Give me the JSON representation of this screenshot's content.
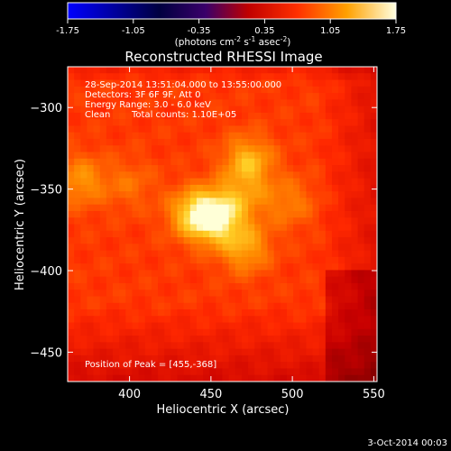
{
  "colorbar": {
    "tick_labels": [
      "-1.75",
      "-1.05",
      "-0.35",
      "0.35",
      "1.05",
      "1.75"
    ],
    "range": [
      -1.75,
      1.75
    ],
    "units_prefix": "(photons cm",
    "units_exp1": "-2",
    "units_mid": " s",
    "units_exp2": "-1",
    "units_mid2": " asec",
    "units_exp3": "-2",
    "units_suffix": ")",
    "colormap": "hot"
  },
  "image_title": "Reconstructed RHESSI Image",
  "annotations": {
    "time_range": "28-Sep-2014 13:51:04.000 to 13:55:00.000",
    "detectors": "Detectors: 3F 6F 9F, Att 0",
    "energy_range": "Energy Range: 3.0 - 6.0 keV",
    "algorithm": "Clean",
    "total_counts": "Total counts: 1.10E+05",
    "peak_position": "Position of Peak = [455,-368]"
  },
  "footer_timestamp": "3-Oct-2014 00:03",
  "chart_data": {
    "type": "heatmap",
    "title": "Reconstructed RHESSI Image",
    "xlabel": "Heliocentric X (arcsec)",
    "ylabel": "Heliocentric Y (arcsec)",
    "xlim": [
      362,
      552
    ],
    "ylim": [
      -468,
      -275
    ],
    "x_ticks": [
      400,
      450,
      500,
      550
    ],
    "y_ticks": [
      -300,
      -350,
      -400,
      -450
    ],
    "x_tick_labels": [
      "400",
      "450",
      "500",
      "550"
    ],
    "y_tick_labels": [
      "−300",
      "−350",
      "−400",
      "−450"
    ],
    "value_range": [
      -1.75,
      1.75
    ],
    "peak": [
      455,
      -368
    ],
    "sources": [
      {
        "x": 452,
        "y": -367,
        "value": 1.75
      },
      {
        "x": 438,
        "y": -365,
        "value": 1.2
      },
      {
        "x": 473,
        "y": -333,
        "value": 1.3
      },
      {
        "x": 471,
        "y": -386,
        "value": 1.2
      },
      {
        "x": 498,
        "y": -358,
        "value": 0.95
      },
      {
        "x": 370,
        "y": -345,
        "value": 1.1
      },
      {
        "x": 400,
        "y": -347,
        "value": 0.85
      },
      {
        "x": 470,
        "y": -355,
        "value": 0.95
      }
    ]
  }
}
